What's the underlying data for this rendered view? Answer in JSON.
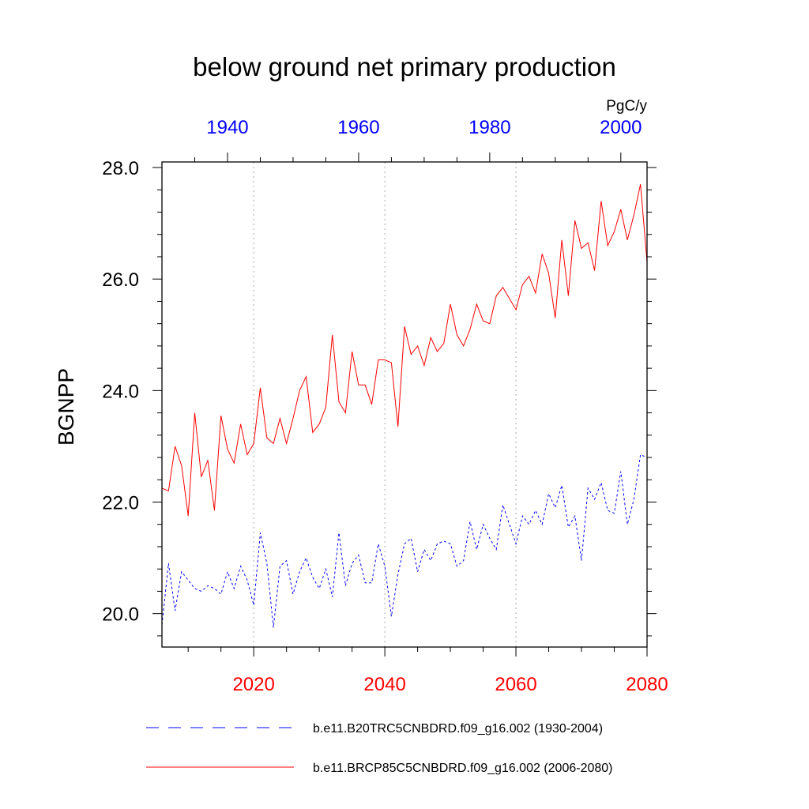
{
  "chart_data": {
    "type": "line",
    "title": "below ground net primary production",
    "ylabel": "BGNPP",
    "units": "PgC/y",
    "ylim": [
      19.4,
      28.1
    ],
    "yticks": [
      20.0,
      22.0,
      24.0,
      26.0,
      28.0
    ],
    "ytick_labels": [
      "20.0",
      "22.0",
      "24.0",
      "26.0",
      "28.0"
    ],
    "x_bottom": {
      "range": [
        2006,
        2080
      ],
      "ticks": [
        2020,
        2040,
        2060,
        2080
      ],
      "tick_labels": [
        "2020",
        "2040",
        "2060",
        "2080"
      ],
      "color": "#ff0000"
    },
    "x_top": {
      "range": [
        1930,
        2004
      ],
      "ticks": [
        1940,
        1960,
        1980,
        2000
      ],
      "tick_labels": [
        "1940",
        "1960",
        "1980",
        "2000"
      ],
      "color": "#0000ff"
    },
    "grid": "vertical dotted at bottom-axis major ticks",
    "legend_position": "bottom",
    "series": [
      {
        "name": "b.e11.B20TRC5CNBDRD.f09_g16.002 (1930-2004)",
        "axis": "top",
        "color": "#0000ff",
        "dash": "dashed",
        "x": [
          1930,
          1931,
          1932,
          1933,
          1934,
          1935,
          1936,
          1937,
          1938,
          1939,
          1940,
          1941,
          1942,
          1943,
          1944,
          1945,
          1946,
          1947,
          1948,
          1949,
          1950,
          1951,
          1952,
          1953,
          1954,
          1955,
          1956,
          1957,
          1958,
          1959,
          1960,
          1961,
          1962,
          1963,
          1964,
          1965,
          1966,
          1967,
          1968,
          1969,
          1970,
          1971,
          1972,
          1973,
          1974,
          1975,
          1976,
          1977,
          1978,
          1979,
          1980,
          1981,
          1982,
          1983,
          1984,
          1985,
          1986,
          1987,
          1988,
          1989,
          1990,
          1991,
          1992,
          1993,
          1994,
          1995,
          1996,
          1997,
          1998,
          1999,
          2000,
          2001,
          2002,
          2003,
          2004
        ],
        "values": [
          19.8,
          20.9,
          20.05,
          20.75,
          20.6,
          20.45,
          20.4,
          20.5,
          20.45,
          20.35,
          20.75,
          20.45,
          20.85,
          20.6,
          20.15,
          21.45,
          20.9,
          19.75,
          20.85,
          20.95,
          20.35,
          20.75,
          21.0,
          20.65,
          20.45,
          20.8,
          20.3,
          21.45,
          20.5,
          20.9,
          21.05,
          20.55,
          20.55,
          21.25,
          20.85,
          19.95,
          20.7,
          21.25,
          21.35,
          20.75,
          21.15,
          20.95,
          21.25,
          21.3,
          21.25,
          20.85,
          20.95,
          21.65,
          21.15,
          21.6,
          21.35,
          21.15,
          21.95,
          21.6,
          21.25,
          21.75,
          21.6,
          21.85,
          21.6,
          22.15,
          21.9,
          22.3,
          21.55,
          21.75,
          20.95,
          22.25,
          22.05,
          22.35,
          21.85,
          21.8,
          22.55,
          21.6,
          22.05,
          22.85,
          22.8
        ]
      },
      {
        "name": "b.e11.BRCP85C5CNBDRD.f09_g16.002 (2006-2080)",
        "axis": "bottom",
        "color": "#ff0000",
        "dash": "solid",
        "x": [
          2006,
          2007,
          2008,
          2009,
          2010,
          2011,
          2012,
          2013,
          2014,
          2015,
          2016,
          2017,
          2018,
          2019,
          2020,
          2021,
          2022,
          2023,
          2024,
          2025,
          2026,
          2027,
          2028,
          2029,
          2030,
          2031,
          2032,
          2033,
          2034,
          2035,
          2036,
          2037,
          2038,
          2039,
          2040,
          2041,
          2042,
          2043,
          2044,
          2045,
          2046,
          2047,
          2048,
          2049,
          2050,
          2051,
          2052,
          2053,
          2054,
          2055,
          2056,
          2057,
          2058,
          2059,
          2060,
          2061,
          2062,
          2063,
          2064,
          2065,
          2066,
          2067,
          2068,
          2069,
          2070,
          2071,
          2072,
          2073,
          2074,
          2075,
          2076,
          2077,
          2078,
          2079,
          2080
        ],
        "values": [
          22.25,
          22.2,
          23.0,
          22.65,
          21.75,
          23.6,
          22.45,
          22.75,
          21.85,
          23.55,
          22.95,
          22.7,
          23.4,
          22.85,
          23.05,
          24.05,
          23.15,
          23.05,
          23.5,
          23.05,
          23.5,
          24.0,
          24.25,
          23.25,
          23.4,
          23.7,
          25.0,
          23.8,
          23.6,
          24.7,
          24.1,
          24.1,
          23.75,
          24.55,
          24.55,
          24.5,
          23.35,
          25.15,
          24.65,
          24.8,
          24.45,
          24.95,
          24.7,
          24.85,
          25.55,
          25.0,
          24.8,
          25.1,
          25.55,
          25.25,
          25.2,
          25.7,
          25.85,
          25.65,
          25.45,
          25.9,
          26.05,
          25.75,
          26.45,
          26.1,
          25.3,
          26.7,
          25.7,
          27.05,
          26.55,
          26.65,
          26.15,
          27.4,
          26.6,
          26.85,
          27.25,
          26.7,
          27.15,
          27.7,
          26.3
        ]
      }
    ]
  }
}
